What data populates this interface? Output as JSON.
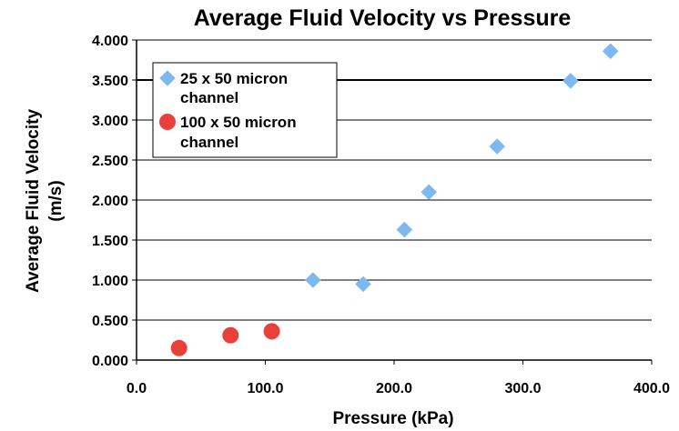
{
  "chart_data": {
    "type": "scatter",
    "title": "Average Fluid Velocity vs Pressure",
    "xlabel": "Pressure (kPa)",
    "ylabel_lines": [
      "Average Fluid Velocity",
      "(m/s)"
    ],
    "xlim": [
      0,
      400
    ],
    "ylim": [
      0,
      4
    ],
    "x_ticks": [
      "0.0",
      "100.0",
      "200.0",
      "300.0",
      "400.0"
    ],
    "y_ticks": [
      "0.000",
      "0.500",
      "1.000",
      "1.500",
      "2.000",
      "2.500",
      "3.000",
      "3.500",
      "4.000"
    ],
    "grid": "horizontal",
    "legend_position": "top-left",
    "series": [
      {
        "name_lines": [
          "25 x 50 micron",
          "channel"
        ],
        "marker": "diamond",
        "color": "#7EB8F0",
        "points": [
          [
            137,
            1.0
          ],
          [
            176,
            0.95
          ],
          [
            208,
            1.63
          ],
          [
            227,
            2.1
          ],
          [
            280,
            2.67
          ],
          [
            337,
            3.49
          ],
          [
            368,
            3.86
          ]
        ]
      },
      {
        "name_lines": [
          "100 x 50 micron",
          "channel"
        ],
        "marker": "circle",
        "color": "#E8413C",
        "points": [
          [
            33,
            0.15
          ],
          [
            73,
            0.31
          ],
          [
            105,
            0.36
          ]
        ]
      }
    ]
  }
}
